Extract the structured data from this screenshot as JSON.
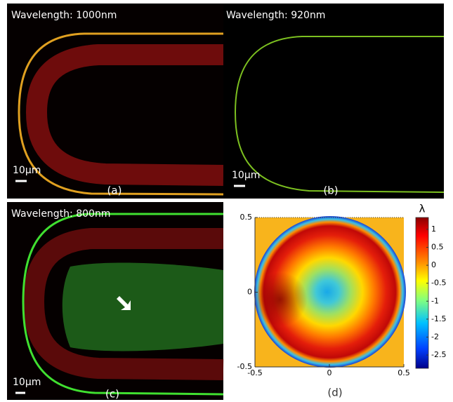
{
  "panels": [
    {
      "title": "Wavelength: 1000nm",
      "scale_bar": "10μm",
      "label": "(a)"
    },
    {
      "title": "Wavelength: 920nm",
      "scale_bar": "10μm",
      "label": "(b)"
    },
    {
      "title": "Wavelength: 800nm",
      "scale_bar": "10μm",
      "label": "(c)"
    },
    {
      "label": "(d)",
      "colorbar_title": "λ",
      "xlim": [
        -0.5,
        0.5
      ],
      "ylim": [
        -0.5,
        0.5
      ],
      "xticks": [
        -0.5,
        0,
        0.5
      ],
      "yticks": [
        -0.5,
        0,
        0.5
      ],
      "clim": [
        -2.87,
        1.33
      ],
      "cticks": [
        -2.5,
        -2,
        -1.5,
        -1,
        -0.5,
        0,
        0.5,
        1
      ]
    }
  ]
}
